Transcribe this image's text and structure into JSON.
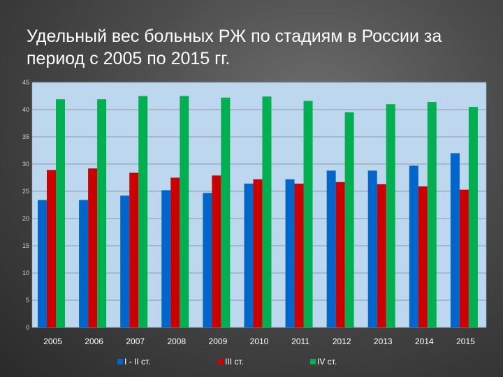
{
  "title": "Удельный вес больных  РЖ по стадиям в России за период с 2005 по 2015 гг.",
  "chart_data": {
    "type": "bar",
    "categories": [
      "2005",
      "2006",
      "2007",
      "2008",
      "2009",
      "2010",
      "2011",
      "2012",
      "2013",
      "2014",
      "2015"
    ],
    "series": [
      {
        "name": "I - II ст.",
        "color": "#0066cc",
        "values": [
          23.4,
          23.4,
          24.2,
          25.2,
          24.7,
          26.4,
          27.2,
          28.8,
          28.8,
          29.7,
          32.0
        ]
      },
      {
        "name": "III ст.",
        "color": "#cc0000",
        "values": [
          28.9,
          29.2,
          28.4,
          27.5,
          27.9,
          27.2,
          26.4,
          26.7,
          26.3,
          25.9,
          25.3
        ]
      },
      {
        "name": "IV ст.",
        "color": "#00b050",
        "values": [
          41.9,
          41.9,
          42.5,
          42.5,
          42.2,
          42.4,
          41.6,
          39.5,
          41.0,
          41.4,
          40.5
        ]
      }
    ],
    "yticks": [
      "0",
      "5",
      "10",
      "15",
      "20",
      "25",
      "30",
      "35",
      "40",
      "45"
    ],
    "ylim": [
      0,
      45
    ],
    "grid": true,
    "legend": "bottom",
    "plot_background": "#bdd7ee"
  }
}
